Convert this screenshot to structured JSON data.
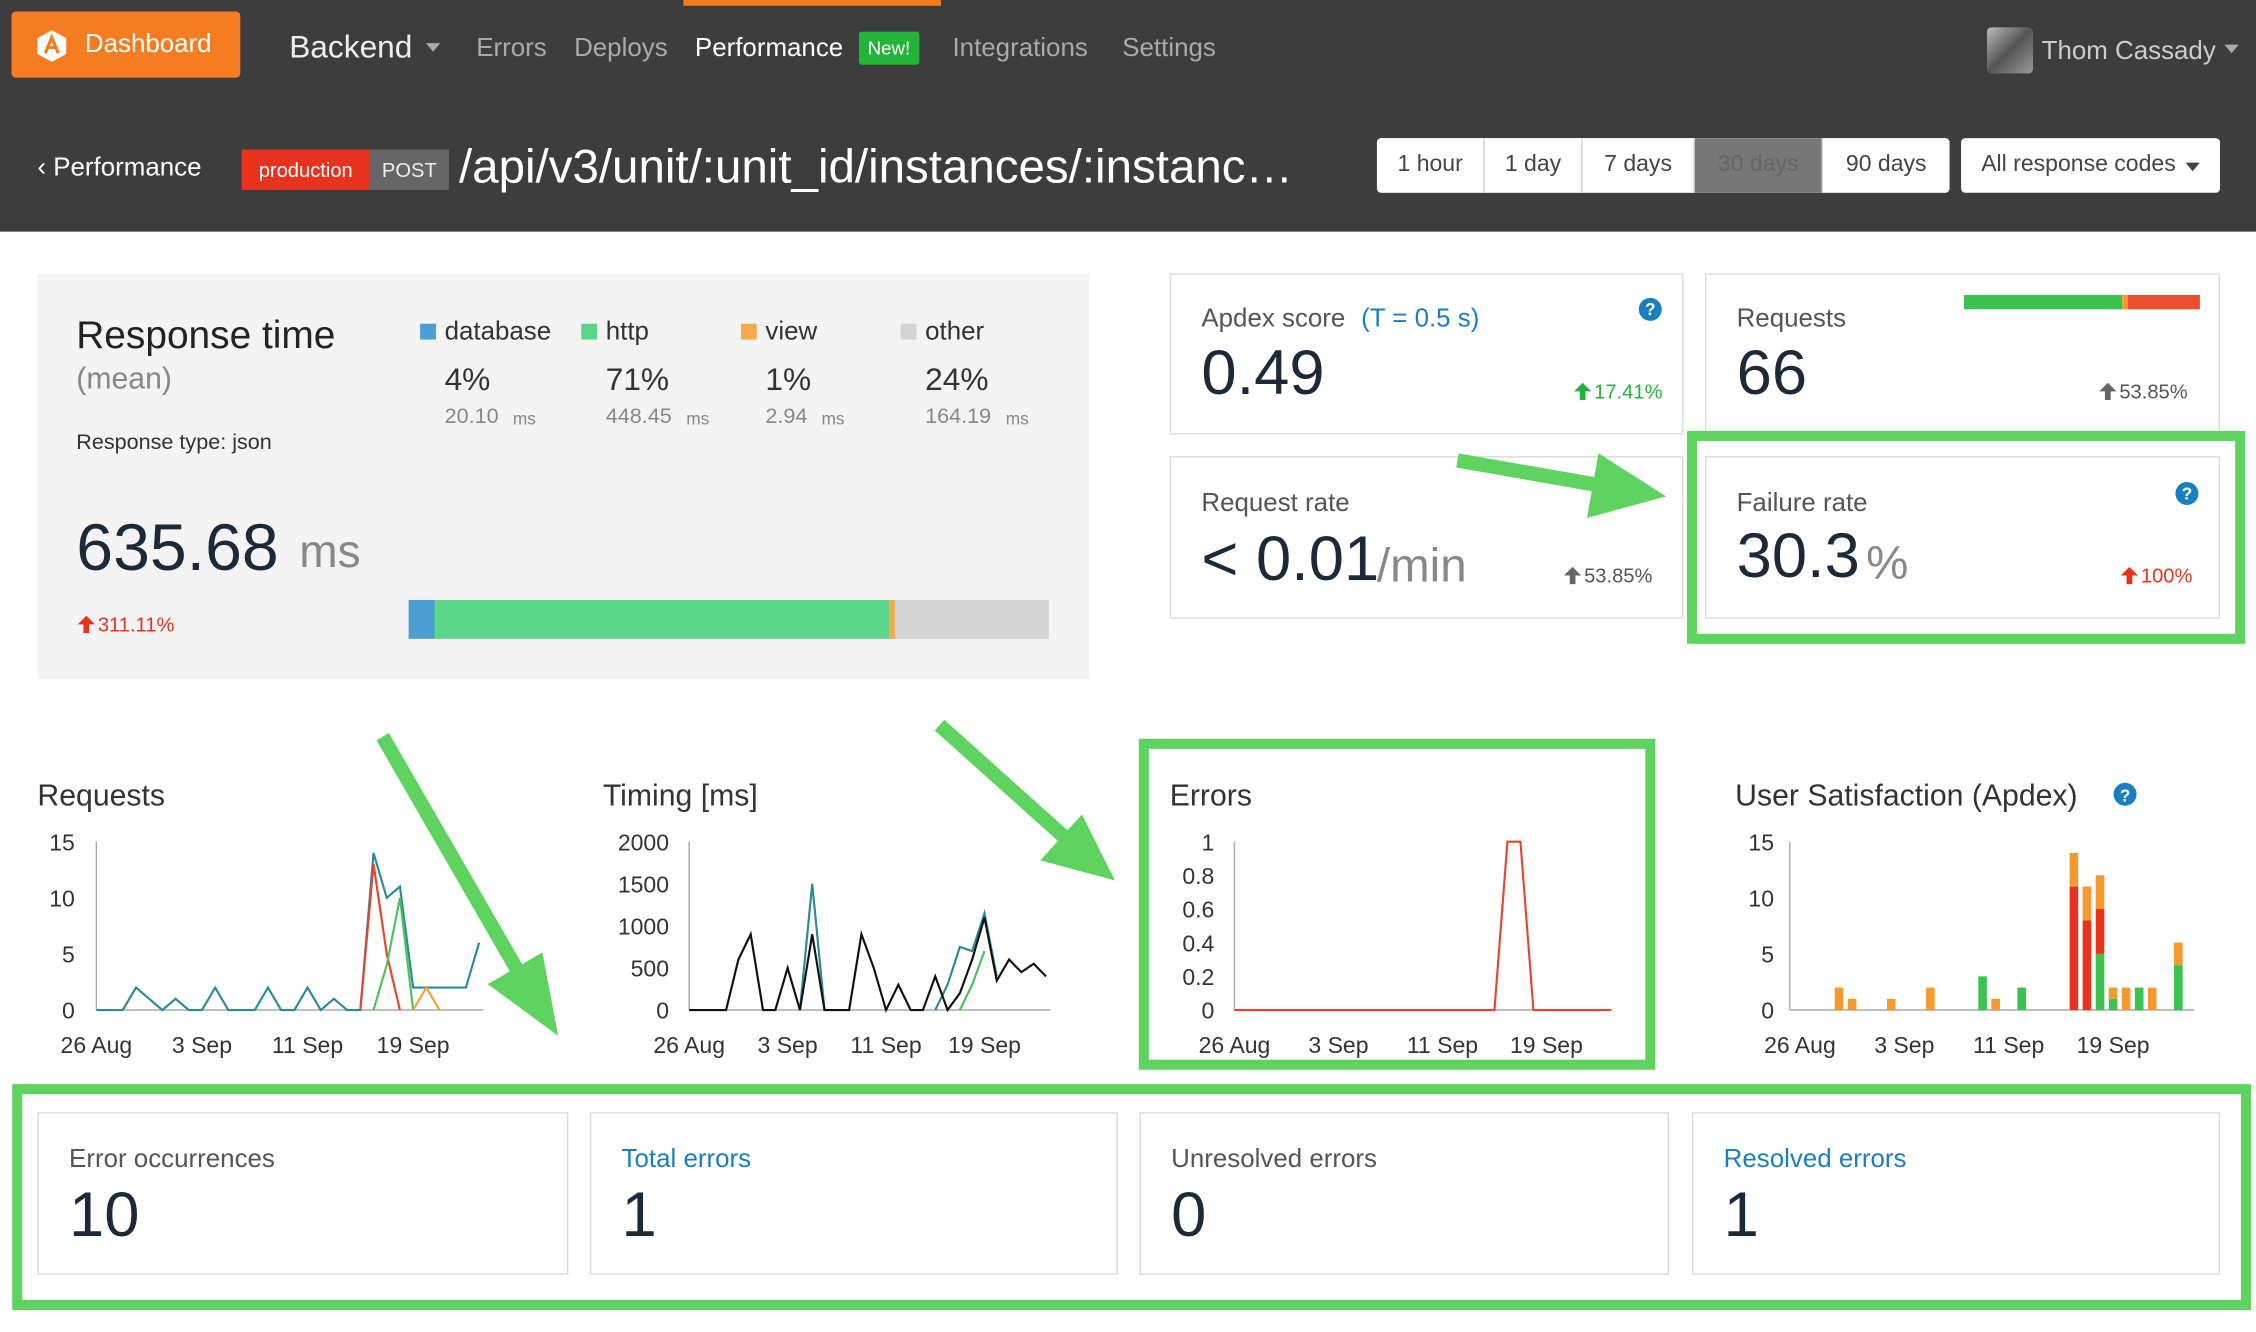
{
  "nav": {
    "brand": "Dashboard",
    "project": "Backend",
    "tabs": [
      "Errors",
      "Deploys",
      "Performance",
      "Integrations",
      "Settings"
    ],
    "new_badge": "New!",
    "user": "Thom Cassady"
  },
  "header": {
    "back": "‹ Performance",
    "env": "production",
    "method": "POST",
    "endpoint": "/api/v3/unit/:unit_id/instances/:instanc…",
    "ranges": [
      "1 hour",
      "1 day",
      "7 days",
      "30 days",
      "90 days"
    ],
    "codes": "All response codes"
  },
  "help": "?",
  "response_time": {
    "title": "Response time",
    "subtitle": "(mean)",
    "type_label": "Response type: json",
    "value": "635.68",
    "unit": "ms",
    "change": "311.11%",
    "ms_unit": "ms",
    "breakdown": [
      {
        "name": "database",
        "percent": 4,
        "percent_label": "4%",
        "ms": "20.10",
        "color": "#4a9fd3"
      },
      {
        "name": "http",
        "percent": 71,
        "percent_label": "71%",
        "ms": "448.45",
        "color": "#5ad68a"
      },
      {
        "name": "view",
        "percent": 1,
        "percent_label": "1%",
        "ms": "2.94",
        "color": "#f5a94a"
      },
      {
        "name": "other",
        "percent": 24,
        "percent_label": "24%",
        "ms": "164.19",
        "color": "#d4d4d4"
      }
    ]
  },
  "metrics": {
    "apdex": {
      "label": "Apdex score",
      "t_label": "(T = 0.5 s)",
      "value": "0.49",
      "change": "17.41%"
    },
    "requests": {
      "label": "Requests",
      "value": "66",
      "change": "53.85%"
    },
    "request_rate": {
      "label": "Request rate",
      "value": "< 0.01",
      "unit": "/min",
      "change": "53.85%"
    },
    "failure_rate": {
      "label": "Failure rate",
      "value": "30.3",
      "unit": "%",
      "change": "100%"
    }
  },
  "error_cards": [
    {
      "label": "Error occurrences",
      "value": "10"
    },
    {
      "label": "Total errors",
      "value": "1"
    },
    {
      "label": "Unresolved errors",
      "value": "0"
    },
    {
      "label": "Resolved errors",
      "value": "1"
    }
  ],
  "chart_data": [
    {
      "type": "line",
      "title": "Requests",
      "categories": [
        "26 Aug",
        null,
        null,
        null,
        null,
        null,
        null,
        null,
        "3 Sep",
        null,
        null,
        null,
        null,
        null,
        null,
        null,
        "11 Sep",
        null,
        null,
        null,
        null,
        null,
        null,
        null,
        "19 Sep",
        null,
        null,
        null,
        null,
        null
      ],
      "ylim": [
        0,
        15
      ],
      "yticks": [
        0,
        5,
        10,
        15
      ],
      "series": [
        {
          "color": "#2a8a9a",
          "values": [
            0,
            0,
            0,
            2,
            1,
            0,
            1,
            0,
            0,
            2,
            0,
            0,
            0,
            2,
            0,
            0,
            2,
            0,
            1,
            0,
            0,
            14,
            10,
            11,
            2,
            2,
            2,
            2,
            2,
            6
          ]
        },
        {
          "color": "#e8432e",
          "values": [
            null,
            null,
            null,
            null,
            null,
            null,
            null,
            null,
            null,
            null,
            null,
            null,
            null,
            null,
            null,
            null,
            null,
            null,
            null,
            null,
            0,
            13,
            5,
            0,
            null,
            null,
            null,
            null,
            null,
            null
          ]
        },
        {
          "color": "#4cc25a",
          "values": [
            null,
            null,
            null,
            null,
            null,
            null,
            null,
            null,
            null,
            null,
            null,
            null,
            null,
            null,
            null,
            null,
            null,
            null,
            null,
            null,
            null,
            0,
            4,
            10,
            0,
            null,
            null,
            null,
            null,
            null
          ]
        },
        {
          "color": "#f5a033",
          "values": [
            null,
            null,
            null,
            null,
            null,
            null,
            null,
            null,
            null,
            null,
            null,
            null,
            null,
            null,
            null,
            null,
            null,
            null,
            null,
            null,
            null,
            null,
            null,
            null,
            0,
            2,
            0,
            null,
            null,
            null
          ]
        }
      ]
    },
    {
      "type": "line",
      "title": "Timing [ms]",
      "categories": [
        "26 Aug",
        null,
        null,
        null,
        null,
        null,
        null,
        null,
        "3 Sep",
        null,
        null,
        null,
        null,
        null,
        null,
        null,
        "11 Sep",
        null,
        null,
        null,
        null,
        null,
        null,
        null,
        "19 Sep",
        null,
        null,
        null,
        null,
        null
      ],
      "ylim": [
        0,
        2000
      ],
      "yticks": [
        0,
        500,
        1000,
        1500,
        2000
      ],
      "series": [
        {
          "color": "#2a8a9a",
          "values": [
            null,
            null,
            null,
            null,
            null,
            null,
            null,
            null,
            null,
            0,
            1500,
            0,
            null,
            null,
            null,
            null,
            null,
            null,
            null,
            null,
            0,
            300,
            750,
            700,
            1150,
            400,
            null,
            null,
            null,
            null
          ]
        },
        {
          "color": "#4cc25a",
          "values": [
            null,
            null,
            null,
            null,
            null,
            null,
            null,
            null,
            null,
            null,
            null,
            null,
            null,
            null,
            null,
            null,
            null,
            null,
            null,
            null,
            null,
            null,
            0,
            300,
            700,
            null,
            null,
            null,
            null,
            null
          ]
        },
        {
          "color": "#111111",
          "values": [
            0,
            0,
            0,
            0,
            600,
            900,
            0,
            0,
            500,
            0,
            900,
            0,
            0,
            0,
            900,
            500,
            0,
            300,
            0,
            0,
            400,
            0,
            200,
            600,
            1100,
            350,
            600,
            450,
            550,
            400
          ]
        }
      ]
    },
    {
      "type": "line",
      "title": "Errors",
      "categories": [
        "26 Aug",
        null,
        null,
        null,
        null,
        null,
        null,
        null,
        "3 Sep",
        null,
        null,
        null,
        null,
        null,
        null,
        null,
        "11 Sep",
        null,
        null,
        null,
        null,
        null,
        null,
        null,
        "19 Sep",
        null,
        null,
        null,
        null,
        null
      ],
      "ylim": [
        0,
        1
      ],
      "yticks": [
        0,
        0.2,
        0.4,
        0.6,
        0.8,
        1
      ],
      "series": [
        {
          "color": "#e8432e",
          "values": [
            0,
            0,
            0,
            0,
            0,
            0,
            0,
            0,
            0,
            0,
            0,
            0,
            0,
            0,
            0,
            0,
            0,
            0,
            0,
            0,
            0,
            1,
            1,
            0,
            0,
            0,
            0,
            0,
            0,
            0
          ]
        }
      ]
    },
    {
      "type": "bar",
      "stacked": true,
      "title": "User Satisfaction (Apdex)",
      "categories": [
        "26 Aug",
        null,
        null,
        null,
        null,
        null,
        null,
        null,
        "3 Sep",
        null,
        null,
        null,
        null,
        null,
        null,
        null,
        "11 Sep",
        null,
        null,
        null,
        null,
        null,
        null,
        null,
        "19 Sep",
        null,
        null,
        null,
        null,
        null
      ],
      "ylim": [
        0,
        15
      ],
      "yticks": [
        0,
        5,
        10,
        15
      ],
      "series": [
        {
          "color": "#3cc250",
          "values": [
            0,
            0,
            0,
            0,
            0,
            0,
            0,
            0,
            0,
            0,
            0,
            0,
            0,
            0,
            3,
            0,
            0,
            2,
            0,
            0,
            0,
            0,
            0,
            5,
            1,
            0,
            2,
            0,
            0,
            4
          ]
        },
        {
          "color": "#e8321e",
          "values": [
            0,
            0,
            0,
            0,
            0,
            0,
            0,
            0,
            0,
            0,
            0,
            0,
            0,
            0,
            0,
            0,
            0,
            0,
            0,
            0,
            0,
            11,
            8,
            4,
            0,
            0,
            0,
            0,
            0,
            0
          ]
        },
        {
          "color": "#f59a2e",
          "values": [
            0,
            0,
            0,
            2,
            1,
            0,
            0,
            1,
            0,
            0,
            2,
            0,
            0,
            0,
            0,
            1,
            0,
            0,
            0,
            0,
            0,
            3,
            3,
            3,
            1,
            2,
            0,
            2,
            0,
            2
          ]
        }
      ]
    }
  ]
}
